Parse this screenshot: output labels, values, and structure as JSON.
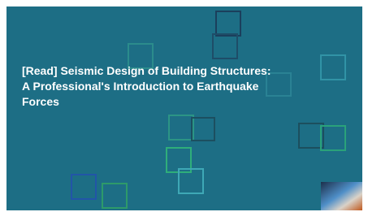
{
  "title": {
    "lines": [
      "[Read] Seismic Design of Building Structures:",
      "A Professional's Introduction to Earthquake",
      "Forces"
    ]
  }
}
